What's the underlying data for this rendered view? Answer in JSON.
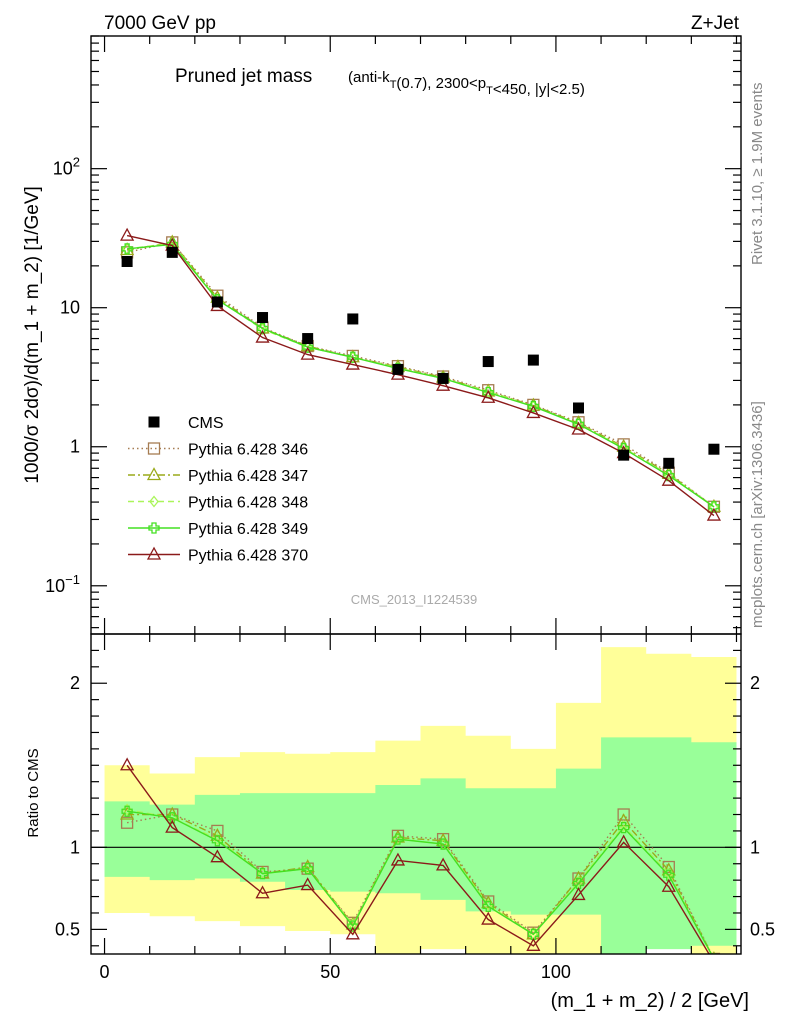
{
  "header": {
    "left": "7000 GeV pp",
    "right": "Z+Jet"
  },
  "side": {
    "rivet": "Rivet 3.1.10, ≥ 1.9M events",
    "mcplots": "mcplots.cern.ch [arXiv:1306.3436]"
  },
  "watermark": "CMS_2013_I1224539",
  "colors": {
    "cms": "#000000",
    "p346": "#a67c52",
    "p347": "#9aaa1a",
    "p348": "#aaf55a",
    "p349": "#44e022",
    "p370": "#8b1a1a",
    "band_outer": "#ffff99",
    "band_inner": "#99ff99"
  },
  "chart_data": [
    {
      "type": "scatter",
      "scale": "log",
      "title": "Pruned jet mass",
      "title_detail": "(anti-k_T(0.7), 2300<p_T<450, |y|<2.5)",
      "ylabel": "1000/σ 2dσ)/d(m_1 + m_2) [1/GeV]",
      "xlim": [
        -3,
        141
      ],
      "ylim": [
        0.045,
        900
      ],
      "y_ticks": [
        {
          "value": 0.1,
          "base": "10",
          "exp": "−1"
        },
        {
          "value": 1,
          "label": "1"
        },
        {
          "value": 10,
          "label": "10"
        },
        {
          "value": 100,
          "base": "10",
          "exp": "2"
        }
      ],
      "x": [
        5,
        15,
        25,
        35,
        45,
        55,
        65,
        75,
        85,
        95,
        105,
        115,
        125,
        135
      ],
      "series": [
        {
          "key": "cms",
          "name": "CMS",
          "marker": "square-filled",
          "line": "none",
          "values": [
            21.5,
            25,
            11,
            8.5,
            6,
            8.3,
            3.6,
            3.1,
            4.1,
            4.2,
            1.9,
            0.87,
            0.76,
            0.96
          ]
        },
        {
          "key": "p346",
          "name": "Pythia 6.428 346",
          "marker": "square-open",
          "line": "dotted",
          "values": [
            25,
            29.5,
            12.2,
            7.2,
            5.3,
            4.5,
            3.8,
            3.2,
            2.55,
            2.0,
            1.5,
            1.04,
            0.65,
            0.37
          ]
        },
        {
          "key": "p347",
          "name": "Pythia 6.428 347",
          "marker": "triangle-open",
          "line": "dashdot",
          "values": [
            26,
            29.5,
            11.8,
            7.1,
            5.3,
            4.4,
            3.75,
            3.15,
            2.5,
            1.98,
            1.48,
            1.0,
            0.64,
            0.37
          ]
        },
        {
          "key": "p348",
          "name": "Pythia 6.428 348",
          "marker": "diamond-open",
          "line": "dashed",
          "values": [
            26.5,
            29.0,
            11.5,
            7.0,
            5.2,
            4.4,
            3.7,
            3.1,
            2.5,
            1.95,
            1.46,
            0.98,
            0.63,
            0.37
          ]
        },
        {
          "key": "p349",
          "name": "Pythia 6.428 349",
          "marker": "cross",
          "line": "solid",
          "values": [
            26.5,
            28.5,
            11.4,
            7.1,
            5.2,
            4.4,
            3.65,
            3.1,
            2.45,
            1.95,
            1.45,
            0.97,
            0.62,
            0.37
          ]
        },
        {
          "key": "p370",
          "name": "Pythia 6.428 370",
          "marker": "triangle-open",
          "line": "solid",
          "values": [
            33,
            28,
            10.3,
            6.1,
            4.6,
            3.9,
            3.3,
            2.75,
            2.25,
            1.75,
            1.33,
            0.9,
            0.57,
            0.32
          ]
        }
      ]
    },
    {
      "type": "line",
      "scale": "linear",
      "ylabel": "Ratio to CMS",
      "xlabel": "(m_1 + m_2) / 2 [GeV]",
      "xlim": [
        -3,
        141
      ],
      "ylim": [
        0.35,
        2.3
      ],
      "x_ticks": [
        0,
        50,
        100
      ],
      "y_ticks": [
        0.5,
        1,
        2
      ],
      "reference": 1,
      "bands": {
        "edges": [
          0,
          10,
          20,
          30,
          40,
          50,
          60,
          70,
          80,
          90,
          100,
          110,
          120,
          130,
          140
        ],
        "outer_low": [
          0.6,
          0.58,
          0.55,
          0.52,
          0.49,
          0.47,
          0.35,
          0.38,
          0.35,
          0.3,
          0.3,
          0.31,
          0.42,
          0.3
        ],
        "outer_high": [
          1.5,
          1.45,
          1.55,
          1.58,
          1.57,
          1.58,
          1.65,
          1.74,
          1.68,
          1.6,
          1.88,
          2.22,
          2.18,
          2.16
        ],
        "inner_low": [
          0.82,
          0.8,
          0.81,
          0.79,
          0.74,
          0.73,
          0.72,
          0.68,
          0.61,
          0.59,
          0.59,
          0.35,
          0.38,
          0.4
        ],
        "inner_high": [
          1.28,
          1.26,
          1.32,
          1.33,
          1.33,
          1.33,
          1.38,
          1.42,
          1.36,
          1.36,
          1.48,
          1.67,
          1.67,
          1.64
        ]
      },
      "x": [
        5,
        15,
        25,
        35,
        45,
        55,
        65,
        75,
        85,
        95,
        105,
        115,
        125,
        135
      ],
      "series": [
        {
          "key": "p346",
          "values": [
            1.15,
            1.2,
            1.1,
            0.85,
            0.87,
            0.54,
            1.07,
            1.05,
            0.67,
            0.48,
            0.81,
            1.2,
            0.88,
            0.32
          ]
        },
        {
          "key": "p347",
          "values": [
            1.2,
            1.2,
            1.07,
            0.84,
            0.88,
            0.53,
            1.06,
            1.04,
            0.66,
            0.47,
            0.81,
            1.16,
            0.86,
            0.32
          ]
        },
        {
          "key": "p348",
          "values": [
            1.23,
            1.18,
            1.05,
            0.84,
            0.87,
            0.53,
            1.05,
            1.02,
            0.65,
            0.47,
            0.79,
            1.13,
            0.84,
            0.32
          ]
        },
        {
          "key": "p349",
          "values": [
            1.22,
            1.18,
            1.04,
            0.84,
            0.87,
            0.52,
            1.05,
            1.02,
            0.64,
            0.47,
            0.78,
            1.12,
            0.83,
            0.32
          ]
        },
        {
          "key": "p370",
          "values": [
            1.5,
            1.12,
            0.94,
            0.72,
            0.77,
            0.47,
            0.92,
            0.89,
            0.56,
            0.4,
            0.71,
            1.03,
            0.76,
            0.3
          ]
        }
      ]
    }
  ]
}
